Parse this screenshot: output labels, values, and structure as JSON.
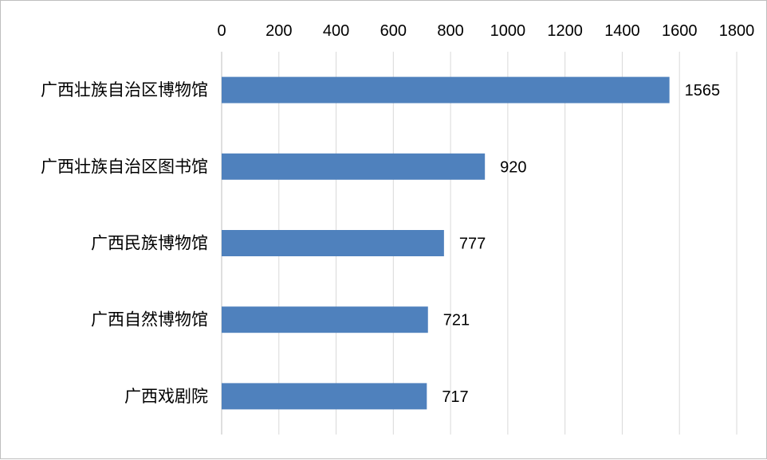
{
  "chart_data": {
    "type": "bar",
    "orientation": "horizontal",
    "categories": [
      "广西壮族自治区博物馆",
      "广西壮族自治区图书馆",
      "广西民族博物馆",
      "广西自然博物馆",
      "广西戏剧院"
    ],
    "values": [
      1565,
      920,
      777,
      721,
      717
    ],
    "xlim": [
      0,
      1800
    ],
    "ticks": [
      0,
      200,
      400,
      600,
      800,
      1000,
      1200,
      1400,
      1600,
      1800
    ],
    "tick_labels": [
      "0",
      "200",
      "400",
      "600",
      "800",
      "1000",
      "1200",
      "1400",
      "1600",
      "1800"
    ],
    "data_labels": [
      "1565",
      "920",
      "777",
      "721",
      "717"
    ],
    "x_axis_position": "top",
    "grid": true,
    "bar_color": "#4f81bd"
  }
}
